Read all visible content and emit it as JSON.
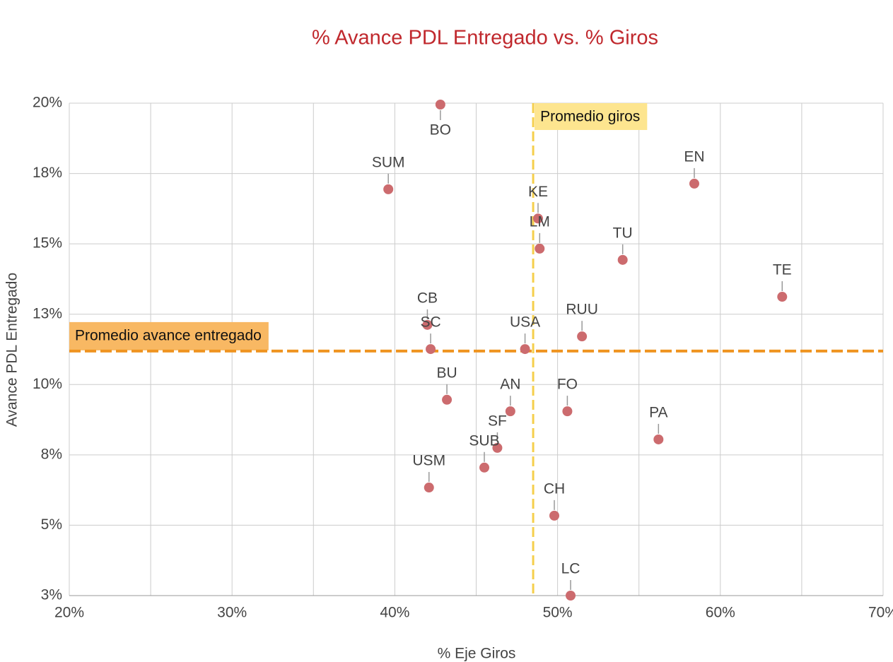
{
  "chart_data": {
    "type": "scatter",
    "title": "% Avance PDL Entregado vs. % Giros",
    "x_label": "% Eje Giros",
    "y_label": "Avance PDL Entregado",
    "xlim": [
      20,
      70
    ],
    "xticks": [
      {
        "value": 20,
        "label": "20%"
      },
      {
        "value": 30,
        "label": "30%"
      },
      {
        "value": 40,
        "label": "40%"
      },
      {
        "value": 50,
        "label": "50%"
      },
      {
        "value": 60,
        "label": "60%"
      },
      {
        "value": 70,
        "label": "70%"
      }
    ],
    "xminorticks": [
      25,
      35,
      45,
      55,
      65
    ],
    "ylim": [
      2.5,
      20
    ],
    "yticks": [
      {
        "value": 2.5,
        "label": "3%"
      },
      {
        "value": 5,
        "label": "5%"
      },
      {
        "value": 7.5,
        "label": "8%"
      },
      {
        "value": 10,
        "label": "10%"
      },
      {
        "value": 12.5,
        "label": "13%"
      },
      {
        "value": 15,
        "label": "15%"
      },
      {
        "value": 17.5,
        "label": "18%"
      },
      {
        "value": 20,
        "label": "20%"
      }
    ],
    "grid": true,
    "color": "#cc6b6e",
    "point_labels": [
      "BO",
      "SUM",
      "EN",
      "KE",
      "LM",
      "TU",
      "TE",
      "CB",
      "SC",
      "USA",
      "RUU",
      "BU",
      "AN",
      "FO",
      "PA",
      "SF",
      "SUB",
      "USM",
      "CH",
      "LC"
    ],
    "x": [
      42.8,
      39.6,
      58.4,
      48.8,
      48.9,
      54.0,
      63.8,
      42.0,
      42.2,
      48.0,
      51.5,
      43.2,
      47.1,
      50.6,
      56.2,
      46.3,
      45.5,
      42.1,
      49.8,
      50.8
    ],
    "values": [
      19.95,
      16.94,
      17.14,
      15.9,
      14.83,
      14.43,
      13.12,
      12.12,
      11.26,
      11.26,
      11.71,
      9.46,
      9.05,
      9.05,
      8.05,
      7.75,
      7.05,
      6.34,
      5.34,
      2.5
    ],
    "reference_lines": [
      {
        "axis": "x",
        "value": 48.5,
        "label": "Promedio giros",
        "color": "#f5cf4c",
        "label_bg": "#fde58f"
      },
      {
        "axis": "y",
        "value": 11.19,
        "label": "Promedio avance entregado",
        "color": "#ef9420",
        "label_bg": "#f8b863"
      }
    ]
  }
}
